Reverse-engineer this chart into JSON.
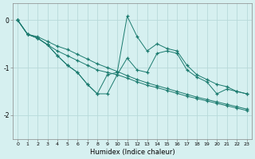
{
  "xlabel": "Humidex (Indice chaleur)",
  "bg_color": "#d6f0f0",
  "grid_color": "#b8dada",
  "line_color": "#1a7a6e",
  "xlim": [
    -0.5,
    23.5
  ],
  "ylim": [
    -2.5,
    0.35
  ],
  "yticks": [
    0,
    -1,
    -2
  ],
  "xticks": [
    0,
    1,
    2,
    3,
    4,
    5,
    6,
    7,
    8,
    9,
    10,
    11,
    12,
    13,
    14,
    15,
    16,
    17,
    18,
    19,
    20,
    21,
    22,
    23
  ],
  "series1_x": [
    0,
    1,
    2,
    3,
    4,
    5,
    6,
    7,
    8,
    9,
    10,
    11,
    12,
    13,
    14,
    15,
    16,
    17,
    18,
    19,
    20,
    21,
    22,
    23
  ],
  "series1_y": [
    0.0,
    -0.3,
    -0.35,
    -0.45,
    -0.55,
    -0.62,
    -0.72,
    -0.82,
    -0.92,
    -1.0,
    -1.08,
    -1.17,
    -1.25,
    -1.32,
    -1.38,
    -1.44,
    -1.5,
    -1.56,
    -1.62,
    -1.67,
    -1.72,
    -1.77,
    -1.82,
    -1.87
  ],
  "series2_x": [
    0,
    1,
    2,
    3,
    4,
    5,
    6,
    7,
    8,
    9,
    10,
    11,
    12,
    13,
    14,
    15,
    16,
    17,
    18,
    19,
    20,
    21,
    22,
    23
  ],
  "series2_y": [
    0.0,
    -0.3,
    -0.38,
    -0.52,
    -0.65,
    -0.75,
    -0.85,
    -0.95,
    -1.05,
    -1.1,
    -1.15,
    -1.22,
    -1.3,
    -1.37,
    -1.42,
    -1.48,
    -1.54,
    -1.6,
    -1.65,
    -1.7,
    -1.75,
    -1.8,
    -1.85,
    -1.9
  ],
  "series3_x": [
    0,
    1,
    2,
    3,
    4,
    5,
    6,
    7,
    8,
    9,
    10,
    11,
    12,
    13,
    14,
    15,
    16,
    17,
    18,
    19,
    20,
    21,
    22,
    23
  ],
  "series3_y": [
    0.0,
    -0.3,
    -0.38,
    -0.52,
    -0.75,
    -0.95,
    -1.1,
    -1.35,
    -1.55,
    -1.15,
    -1.1,
    0.08,
    -0.35,
    -0.65,
    -0.5,
    -0.6,
    -0.65,
    -0.95,
    -1.15,
    -1.25,
    -1.35,
    -1.4,
    -1.5,
    -1.55
  ],
  "series4_x": [
    0,
    1,
    2,
    3,
    4,
    5,
    6,
    7,
    8,
    9,
    10,
    11,
    12,
    13,
    14,
    15,
    16,
    17,
    18,
    19,
    20,
    21,
    22,
    23
  ],
  "series4_y": [
    0.0,
    -0.3,
    -0.38,
    -0.52,
    -0.75,
    -0.95,
    -1.1,
    -1.35,
    -1.55,
    -1.55,
    -1.15,
    -0.8,
    -1.05,
    -1.1,
    -0.7,
    -0.65,
    -0.7,
    -1.05,
    -1.2,
    -1.3,
    -1.55,
    -1.45,
    -1.5,
    -1.55
  ]
}
